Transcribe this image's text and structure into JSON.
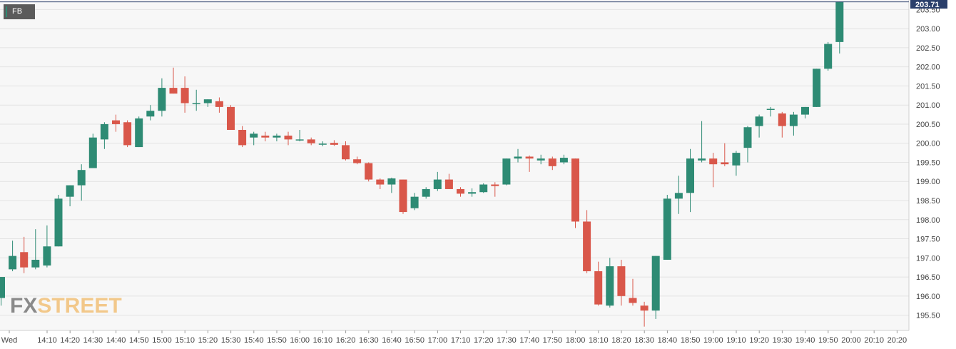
{
  "symbol_tag": "FB",
  "logo": {
    "part1": "FX",
    "part2": "STREET"
  },
  "last_price_label": "203.71",
  "colors": {
    "up": "#2e8b74",
    "down": "#d9574a",
    "grid": "#e3e3e3",
    "background": "#f7f7f7",
    "price_badge": "#2a3f6b"
  },
  "chart_data": {
    "type": "candlestick",
    "symbol": "FB",
    "ylim": [
      195.1,
      203.75
    ],
    "y_ticks": [
      "195.50",
      "196.00",
      "196.50",
      "197.00",
      "197.50",
      "198.00",
      "198.50",
      "199.00",
      "199.50",
      "200.00",
      "200.50",
      "201.00",
      "201.50",
      "202.00",
      "202.50",
      "203.00",
      "203.50"
    ],
    "x_ticks": [
      "Wed",
      "14:10",
      "14:20",
      "14:30",
      "14:40",
      "14:50",
      "15:00",
      "15:10",
      "15:20",
      "15:30",
      "15:40",
      "15:50",
      "16:00",
      "16:10",
      "16:20",
      "16:30",
      "16:40",
      "16:50",
      "17:00",
      "17:10",
      "17:20",
      "17:30",
      "17:40",
      "17:50",
      "18:00",
      "18:10",
      "18:20",
      "18:30",
      "18:40",
      "18:50",
      "19:00",
      "19:10",
      "19:20",
      "19:30",
      "19:40",
      "19:50",
      "20:00",
      "20:10",
      "20:20"
    ],
    "last_price": 203.71,
    "candles": [
      {
        "o": 195.95,
        "h": 196.5,
        "l": 195.75,
        "c": 196.5
      },
      {
        "o": 196.7,
        "h": 197.45,
        "l": 196.65,
        "c": 197.05
      },
      {
        "o": 197.15,
        "h": 197.55,
        "l": 196.6,
        "c": 196.75
      },
      {
        "o": 196.75,
        "h": 197.75,
        "l": 196.7,
        "c": 196.95
      },
      {
        "o": 196.8,
        "h": 197.85,
        "l": 196.75,
        "c": 197.3
      },
      {
        "o": 197.3,
        "h": 198.65,
        "l": 197.3,
        "c": 198.55
      },
      {
        "o": 198.6,
        "h": 198.9,
        "l": 198.35,
        "c": 198.9
      },
      {
        "o": 198.9,
        "h": 199.45,
        "l": 198.5,
        "c": 199.3
      },
      {
        "o": 199.35,
        "h": 200.25,
        "l": 199.35,
        "c": 200.15
      },
      {
        "o": 200.1,
        "h": 200.55,
        "l": 199.85,
        "c": 200.5
      },
      {
        "o": 200.6,
        "h": 200.75,
        "l": 200.3,
        "c": 200.5
      },
      {
        "o": 200.55,
        "h": 200.6,
        "l": 199.9,
        "c": 199.95
      },
      {
        "o": 199.9,
        "h": 200.7,
        "l": 199.9,
        "c": 200.65
      },
      {
        "o": 200.7,
        "h": 201.0,
        "l": 200.6,
        "c": 200.85
      },
      {
        "o": 200.85,
        "h": 201.7,
        "l": 200.7,
        "c": 201.45
      },
      {
        "o": 201.45,
        "h": 201.98,
        "l": 201.3,
        "c": 201.3
      },
      {
        "o": 201.45,
        "h": 201.75,
        "l": 200.8,
        "c": 201.05
      },
      {
        "o": 201.05,
        "h": 201.4,
        "l": 200.85,
        "c": 201.05
      },
      {
        "o": 201.05,
        "h": 201.15,
        "l": 200.95,
        "c": 201.15
      },
      {
        "o": 201.1,
        "h": 201.2,
        "l": 200.8,
        "c": 200.95
      },
      {
        "o": 200.95,
        "h": 201.0,
        "l": 200.35,
        "c": 200.35
      },
      {
        "o": 200.35,
        "h": 200.45,
        "l": 199.9,
        "c": 199.95
      },
      {
        "o": 200.15,
        "h": 200.3,
        "l": 199.95,
        "c": 200.25
      },
      {
        "o": 200.2,
        "h": 200.3,
        "l": 200.05,
        "c": 200.15
      },
      {
        "o": 200.15,
        "h": 200.25,
        "l": 200.05,
        "c": 200.2
      },
      {
        "o": 200.2,
        "h": 200.3,
        "l": 199.95,
        "c": 200.1
      },
      {
        "o": 200.1,
        "h": 200.35,
        "l": 200.05,
        "c": 200.1
      },
      {
        "o": 200.1,
        "h": 200.15,
        "l": 199.95,
        "c": 200.0
      },
      {
        "o": 199.99,
        "h": 200.05,
        "l": 199.92,
        "c": 199.99
      },
      {
        "o": 200.01,
        "h": 200.08,
        "l": 199.93,
        "c": 199.96
      },
      {
        "o": 199.95,
        "h": 200.05,
        "l": 199.55,
        "c": 199.58
      },
      {
        "o": 199.58,
        "h": 199.65,
        "l": 199.45,
        "c": 199.48
      },
      {
        "o": 199.48,
        "h": 199.5,
        "l": 199.0,
        "c": 199.05
      },
      {
        "o": 199.05,
        "h": 199.08,
        "l": 198.8,
        "c": 198.92
      },
      {
        "o": 198.92,
        "h": 199.1,
        "l": 198.7,
        "c": 199.08
      },
      {
        "o": 199.05,
        "h": 199.05,
        "l": 198.15,
        "c": 198.2
      },
      {
        "o": 198.3,
        "h": 198.7,
        "l": 198.25,
        "c": 198.6
      },
      {
        "o": 198.6,
        "h": 198.85,
        "l": 198.55,
        "c": 198.8
      },
      {
        "o": 198.8,
        "h": 199.25,
        "l": 198.75,
        "c": 199.05
      },
      {
        "o": 199.05,
        "h": 199.2,
        "l": 198.8,
        "c": 198.8
      },
      {
        "o": 198.8,
        "h": 198.85,
        "l": 198.6,
        "c": 198.68
      },
      {
        "o": 198.68,
        "h": 198.82,
        "l": 198.6,
        "c": 198.72
      },
      {
        "o": 198.72,
        "h": 198.95,
        "l": 198.7,
        "c": 198.92
      },
      {
        "o": 198.92,
        "h": 198.98,
        "l": 198.6,
        "c": 198.88
      },
      {
        "o": 198.92,
        "h": 199.6,
        "l": 198.9,
        "c": 199.6
      },
      {
        "o": 199.6,
        "h": 199.85,
        "l": 199.5,
        "c": 199.65
      },
      {
        "o": 199.65,
        "h": 199.68,
        "l": 199.25,
        "c": 199.6
      },
      {
        "o": 199.55,
        "h": 199.7,
        "l": 199.45,
        "c": 199.6
      },
      {
        "o": 199.6,
        "h": 199.65,
        "l": 199.3,
        "c": 199.4
      },
      {
        "o": 199.5,
        "h": 199.7,
        "l": 199.45,
        "c": 199.62
      },
      {
        "o": 199.6,
        "h": 199.6,
        "l": 197.78,
        "c": 197.95
      },
      {
        "o": 197.95,
        "h": 198.25,
        "l": 196.6,
        "c": 196.65
      },
      {
        "o": 196.65,
        "h": 196.9,
        "l": 195.75,
        "c": 195.78
      },
      {
        "o": 195.75,
        "h": 197.0,
        "l": 195.7,
        "c": 196.78
      },
      {
        "o": 196.78,
        "h": 196.95,
        "l": 195.75,
        "c": 196.0
      },
      {
        "o": 195.95,
        "h": 196.45,
        "l": 195.75,
        "c": 195.82
      },
      {
        "o": 195.75,
        "h": 195.85,
        "l": 195.2,
        "c": 195.62
      },
      {
        "o": 195.62,
        "h": 197.05,
        "l": 195.4,
        "c": 197.05
      },
      {
        "o": 196.95,
        "h": 198.65,
        "l": 196.95,
        "c": 198.55
      },
      {
        "o": 198.55,
        "h": 199.15,
        "l": 198.15,
        "c": 198.7
      },
      {
        "o": 198.7,
        "h": 199.85,
        "l": 198.2,
        "c": 199.6
      },
      {
        "o": 199.55,
        "h": 200.58,
        "l": 199.5,
        "c": 199.6
      },
      {
        "o": 199.6,
        "h": 199.75,
        "l": 198.85,
        "c": 199.45
      },
      {
        "o": 199.5,
        "h": 200.0,
        "l": 199.4,
        "c": 199.45
      },
      {
        "o": 199.42,
        "h": 199.8,
        "l": 199.15,
        "c": 199.75
      },
      {
        "o": 199.88,
        "h": 200.45,
        "l": 199.5,
        "c": 200.42
      },
      {
        "o": 200.45,
        "h": 200.75,
        "l": 200.15,
        "c": 200.7
      },
      {
        "o": 200.88,
        "h": 200.95,
        "l": 200.7,
        "c": 200.9
      },
      {
        "o": 200.78,
        "h": 200.82,
        "l": 200.15,
        "c": 200.45
      },
      {
        "o": 200.45,
        "h": 200.82,
        "l": 200.2,
        "c": 200.75
      },
      {
        "o": 200.75,
        "h": 200.95,
        "l": 200.65,
        "c": 200.95
      },
      {
        "o": 200.95,
        "h": 201.95,
        "l": 200.95,
        "c": 201.95
      },
      {
        "o": 201.95,
        "h": 202.65,
        "l": 201.9,
        "c": 202.6
      },
      {
        "o": 202.65,
        "h": 203.71,
        "l": 202.35,
        "c": 203.71
      }
    ]
  }
}
